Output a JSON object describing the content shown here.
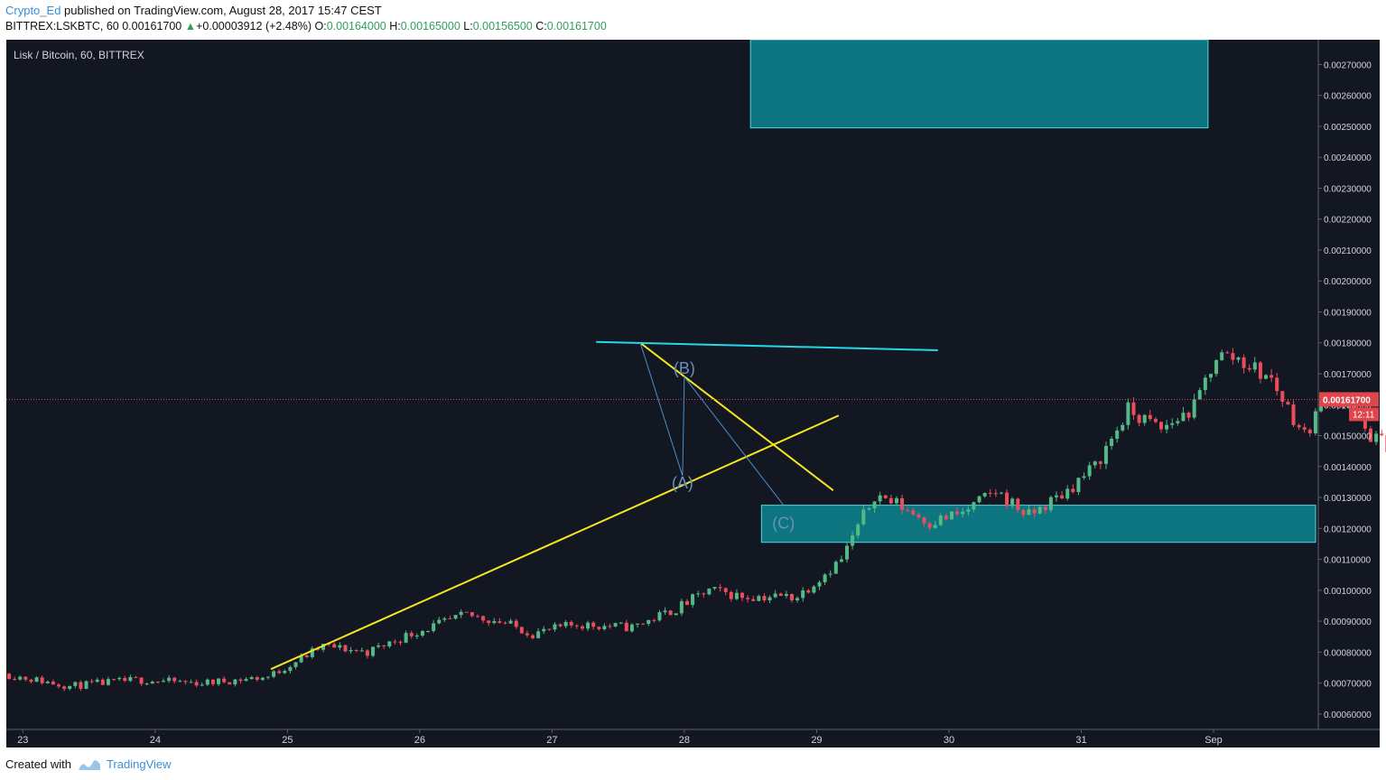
{
  "header": {
    "author": "Crypto_Ed",
    "published_text": " published on TradingView.com, August 28, 2017 15:47 CEST",
    "symbol": "BITTREX:LSKBTC, 60",
    "last": "0.00161700",
    "change_arrow": "▲",
    "change": "+0.00003912 (+2.48%)",
    "o_label": "O:",
    "o_value": "0.00164000",
    "h_label": "H:",
    "h_value": "0.00165000",
    "l_label": "L:",
    "l_value": "0.00156500",
    "c_label": "C:",
    "c_value": "0.00161700"
  },
  "footer": {
    "created_with": "Created with",
    "brand": "TradingView",
    "logo_icon": "tradingview-logo-icon"
  },
  "colors": {
    "background": "#131722",
    "up": "#53b987",
    "down": "#eb4d5c",
    "zone_fill": "#0d7580",
    "zone_border": "#4dd7e5",
    "cyan_line": "#26d7e8",
    "yellow_line": "#f5e71e",
    "wave_line": "#4a90c8",
    "wave_label": "#6b8fbf",
    "price_line": "#e0454c",
    "axis_bg": "#131722",
    "axis_text": "#d1d4dc"
  },
  "chart_data": {
    "type": "candlestick",
    "title": "Lisk / Bitcoin, 60, BITTREX",
    "interval": "60",
    "x_axis": {
      "type": "time",
      "range": [
        "2017-08-22 21:00",
        "2017-09-01 19:00"
      ],
      "tick_labels": [
        "23",
        "24",
        "25",
        "26",
        "27",
        "28",
        "29",
        "30",
        "31",
        "Sep"
      ],
      "ticks": [
        "2017-08-23 00:00",
        "2017-08-24 00:00",
        "2017-08-25 00:00",
        "2017-08-26 00:00",
        "2017-08-27 00:00",
        "2017-08-28 00:00",
        "2017-08-29 00:00",
        "2017-08-30 00:00",
        "2017-08-31 00:00",
        "2017-09-01 00:00"
      ]
    },
    "y_axis": {
      "range": [
        0.00055,
        0.00278
      ],
      "position": "right",
      "tick_labels": [
        "0.00270000",
        "0.00260000",
        "0.00250000",
        "0.00240000",
        "0.00230000",
        "0.00220000",
        "0.00210000",
        "0.00200000",
        "0.00190000",
        "0.00180000",
        "0.00170000",
        "0.00160000",
        "0.00150000",
        "0.00140000",
        "0.00130000",
        "0.00120000",
        "0.00110000",
        "0.00100000",
        "0.00090000",
        "0.00080000",
        "0.00070000",
        "0.00060000"
      ],
      "ticks": [
        0.0027,
        0.0026,
        0.0025,
        0.0024,
        0.0023,
        0.0022,
        0.0021,
        0.002,
        0.0019,
        0.0018,
        0.0017,
        0.0016,
        0.0015,
        0.0014,
        0.0013,
        0.0012,
        0.0011,
        0.001,
        0.0009,
        0.0008,
        0.0007,
        0.0006
      ]
    },
    "last_price": {
      "value": 0.001617,
      "label": "0.00161700",
      "countdown": "12:11"
    },
    "candle_keypoints": [
      [
        0,
        0.00073
      ],
      [
        12,
        0.00069
      ],
      [
        24,
        0.00071
      ],
      [
        36,
        0.0007
      ],
      [
        48,
        0.00072
      ],
      [
        58,
        0.00082
      ],
      [
        66,
        0.0008
      ],
      [
        74,
        0.00086
      ],
      [
        84,
        0.00092
      ],
      [
        90,
        0.0009
      ],
      [
        96,
        0.00086
      ],
      [
        104,
        0.00089
      ],
      [
        114,
        0.00088
      ],
      [
        122,
        0.00094
      ],
      [
        128,
        0.001
      ],
      [
        134,
        0.00098
      ],
      [
        144,
        0.00098
      ],
      [
        152,
        0.0011
      ],
      [
        158,
        0.00131
      ],
      [
        162,
        0.00128
      ],
      [
        168,
        0.00122
      ],
      [
        174,
        0.00125
      ],
      [
        180,
        0.00132
      ],
      [
        186,
        0.00124
      ],
      [
        192,
        0.00131
      ],
      [
        198,
        0.0014
      ],
      [
        204,
        0.00158
      ],
      [
        210,
        0.00152
      ],
      [
        216,
        0.00159
      ],
      [
        220,
        0.00176
      ],
      [
        224,
        0.00175
      ],
      [
        230,
        0.00168
      ],
      [
        236,
        0.0015
      ],
      [
        240,
        0.00163
      ],
      [
        244,
        0.00158
      ],
      [
        248,
        0.0015
      ],
      [
        252,
        0.00146
      ],
      [
        258,
        0.00147
      ],
      [
        262,
        0.00157
      ],
      [
        264,
        0.00164
      ]
    ],
    "drawings": {
      "rectangles": [
        {
          "name": "upper-target-zone",
          "from": "2017-08-28 12:00",
          "to": "2017-08-31 23:00",
          "top": 0.00278,
          "bottom": 0.002495
        },
        {
          "name": "lower-target-zone",
          "from": "2017-08-28 14:00",
          "to": "2017-09-01 19:00",
          "top": 0.001275,
          "bottom": 0.001155
        }
      ],
      "lines": [
        {
          "name": "support-trendline",
          "color": "yellow",
          "from": [
            "2017-08-24 21:00",
            0.000745
          ],
          "to": [
            "2017-08-29 04:00",
            0.001565
          ]
        },
        {
          "name": "descending-trendline",
          "color": "yellow",
          "from": [
            "2017-08-27 16:00",
            0.0018
          ],
          "to": [
            "2017-08-29 03:00",
            0.001323
          ]
        },
        {
          "name": "resistance-line",
          "color": "cyan",
          "from": [
            "2017-08-27 08:00",
            0.001803
          ],
          "to": [
            "2017-08-29 22:00",
            0.001776
          ]
        }
      ],
      "wave_path": [
        [
          "2017-08-27 16:00",
          0.0018
        ],
        [
          "2017-08-27 23:40",
          0.00137
        ],
        [
          "2017-08-28 00:00",
          0.00169
        ],
        [
          "2017-08-28 18:00",
          0.001275
        ]
      ],
      "labels": [
        {
          "text": "(B)",
          "at": [
            "2017-08-28 00:00",
            0.0017
          ]
        },
        {
          "text": "(A)",
          "at": [
            "2017-08-27 23:40",
            0.00133
          ]
        },
        {
          "text": "(C)",
          "at": [
            "2017-08-28 18:00",
            0.0012
          ]
        }
      ]
    }
  }
}
